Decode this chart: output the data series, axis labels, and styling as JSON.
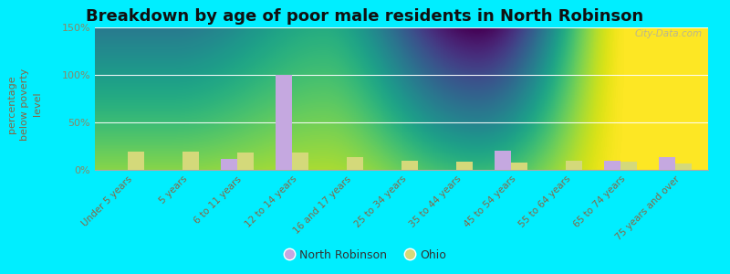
{
  "title": "Breakdown by age of poor male residents in North Robinson",
  "ylabel": "percentage\nbelow poverty\nlevel",
  "categories": [
    "Under 5 years",
    "5 years",
    "6 to 11 years",
    "12 to 14 years",
    "16 and 17 years",
    "25 to 34 years",
    "35 to 44 years",
    "45 to 54 years",
    "55 to 64 years",
    "65 to 74 years",
    "75 years and over"
  ],
  "north_robinson": [
    0,
    0,
    12,
    100,
    0,
    0,
    0,
    20,
    0,
    10,
    13
  ],
  "ohio": [
    19,
    19,
    18,
    18,
    13,
    10,
    9,
    8,
    10,
    9,
    7
  ],
  "color_robinson": "#c5a8e0",
  "color_ohio": "#d4d97a",
  "ylim": [
    0,
    150
  ],
  "yticks": [
    0,
    50,
    100,
    150
  ],
  "ytick_labels": [
    "0%",
    "50%",
    "100%",
    "150%"
  ],
  "bar_width": 0.3,
  "title_fontsize": 13,
  "watermark": "City-Data.com",
  "background_color": "#00eeff",
  "chart_bg_top": "#e8f0d8",
  "chart_bg_bottom": "#f8faf2",
  "tick_color": "#888866",
  "label_color": "#886644",
  "legend_label_nr": "North Robinson",
  "legend_label_oh": "Ohio"
}
